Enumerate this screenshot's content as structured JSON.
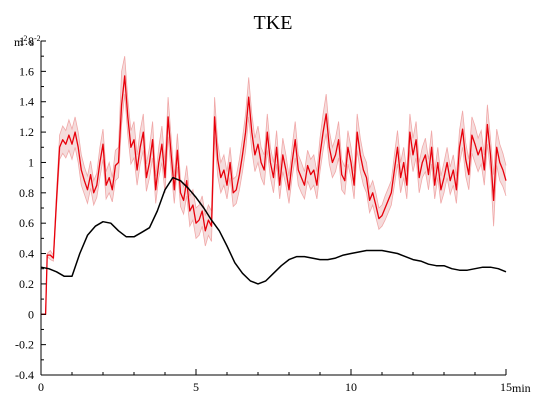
{
  "chart_data": {
    "type": "line",
    "title": "TKE",
    "ylabel": "m² s⁻²",
    "xlabel": "min",
    "xlim": [
      0,
      15
    ],
    "ylim": [
      -0.4,
      1.8
    ],
    "x_ticks": [
      0,
      5,
      10,
      15
    ],
    "x_tick_labels": [
      "0",
      "5",
      "10",
      "15"
    ],
    "y_ticks": [
      -0.4,
      -0.2,
      0,
      0.2,
      0.4,
      0.6,
      0.8,
      1,
      1.2,
      1.4,
      1.6,
      1.8
    ],
    "y_tick_labels": [
      "-0.4",
      "-0.2",
      "0",
      "0.2",
      "0.4",
      "0.6",
      "0.8",
      "1",
      "1.2",
      "1.4",
      "1.6",
      "1.8"
    ],
    "grid": false,
    "legend": "none",
    "colors": {
      "red_line": "#e8000b",
      "band_fill": "#f5dcdc",
      "band_edge": "#f0a8a8",
      "black_line": "#000000",
      "axis": "#000000"
    },
    "series": [
      {
        "color": "#e8000b",
        "has_band": true,
        "x": [
          0,
          0.15,
          0.2,
          0.3,
          0.4,
          0.5,
          0.6,
          0.7,
          0.8,
          0.9,
          1.0,
          1.1,
          1.2,
          1.3,
          1.4,
          1.5,
          1.6,
          1.7,
          1.8,
          1.9,
          2.0,
          2.1,
          2.2,
          2.3,
          2.4,
          2.5,
          2.6,
          2.7,
          2.8,
          2.9,
          3.0,
          3.1,
          3.2,
          3.3,
          3.4,
          3.5,
          3.6,
          3.7,
          3.8,
          3.9,
          4.0,
          4.1,
          4.2,
          4.3,
          4.4,
          4.5,
          4.6,
          4.7,
          4.8,
          4.9,
          5.0,
          5.1,
          5.2,
          5.3,
          5.4,
          5.5,
          5.6,
          5.7,
          5.8,
          5.9,
          6.0,
          6.1,
          6.2,
          6.3,
          6.4,
          6.5,
          6.6,
          6.7,
          6.8,
          6.9,
          7.0,
          7.1,
          7.2,
          7.3,
          7.4,
          7.5,
          7.6,
          7.7,
          7.8,
          7.9,
          8.0,
          8.1,
          8.2,
          8.3,
          8.4,
          8.5,
          8.6,
          8.7,
          8.8,
          8.9,
          9.0,
          9.1,
          9.2,
          9.3,
          9.4,
          9.5,
          9.6,
          9.7,
          9.8,
          9.9,
          10.0,
          10.1,
          10.2,
          10.3,
          10.4,
          10.5,
          10.6,
          10.7,
          10.8,
          10.9,
          11.0,
          11.1,
          11.2,
          11.3,
          11.4,
          11.5,
          11.6,
          11.7,
          11.8,
          11.9,
          12.0,
          12.1,
          12.2,
          12.3,
          12.4,
          12.5,
          12.6,
          12.7,
          12.8,
          12.9,
          13.0,
          13.1,
          13.2,
          13.3,
          13.4,
          13.5,
          13.6,
          13.7,
          13.8,
          13.9,
          14.0,
          14.1,
          14.2,
          14.3,
          14.4,
          14.5,
          14.6,
          14.7,
          14.8,
          14.9,
          15.0
        ],
        "values": [
          0.0,
          0.0,
          0.39,
          0.39,
          0.37,
          0.75,
          1.1,
          1.15,
          1.12,
          1.18,
          1.12,
          1.2,
          1.1,
          0.95,
          0.88,
          0.82,
          0.92,
          0.8,
          0.85,
          1.0,
          1.12,
          0.85,
          0.9,
          0.82,
          0.98,
          1.0,
          1.38,
          1.57,
          1.3,
          1.1,
          1.15,
          0.95,
          1.1,
          1.2,
          0.9,
          1.0,
          1.15,
          0.82,
          1.0,
          1.12,
          0.9,
          1.3,
          1.05,
          0.82,
          1.08,
          0.8,
          0.75,
          0.88,
          0.68,
          0.72,
          0.6,
          0.62,
          0.68,
          0.55,
          0.62,
          0.58,
          1.3,
          1.02,
          0.9,
          0.95,
          0.85,
          1.0,
          0.8,
          0.82,
          0.92,
          1.05,
          1.2,
          1.43,
          1.2,
          1.05,
          1.12,
          1.0,
          0.95,
          1.2,
          1.0,
          0.9,
          1.1,
          0.85,
          1.05,
          0.95,
          0.82,
          1.0,
          1.15,
          0.95,
          0.9,
          0.85,
          0.98,
          0.92,
          0.95,
          0.85,
          1.05,
          1.2,
          1.32,
          1.1,
          1.0,
          1.05,
          1.15,
          0.92,
          0.88,
          1.1,
          1.0,
          0.85,
          1.2,
          1.05,
          0.95,
          0.9,
          0.75,
          0.8,
          0.72,
          0.63,
          0.65,
          0.7,
          0.75,
          0.8,
          0.95,
          1.1,
          0.9,
          1.0,
          0.85,
          1.2,
          1.05,
          1.15,
          0.9,
          1.0,
          1.05,
          0.92,
          1.1,
          0.85,
          1.0,
          0.82,
          0.9,
          1.0,
          0.88,
          0.95,
          0.82,
          1.1,
          1.22,
          1.02,
          0.92,
          1.18,
          1.12,
          1.05,
          1.1,
          0.95,
          1.25,
          1.05,
          0.75,
          1.1,
          1.0,
          0.95,
          0.88
        ],
        "lower": [
          0.0,
          0.0,
          0.38,
          0.36,
          0.35,
          0.7,
          1.02,
          1.06,
          1.03,
          1.08,
          1.02,
          1.1,
          1.0,
          0.85,
          0.79,
          0.73,
          0.83,
          0.72,
          0.77,
          0.9,
          1.02,
          0.76,
          0.8,
          0.74,
          0.88,
          0.9,
          1.25,
          1.45,
          1.18,
          0.99,
          1.03,
          0.85,
          0.99,
          1.08,
          0.81,
          0.9,
          1.03,
          0.73,
          0.9,
          1.0,
          0.8,
          1.17,
          0.94,
          0.73,
          0.97,
          0.71,
          0.66,
          0.78,
          0.58,
          0.62,
          0.5,
          0.52,
          0.58,
          0.45,
          0.52,
          0.48,
          1.17,
          0.91,
          0.8,
          0.85,
          0.76,
          0.9,
          0.71,
          0.73,
          0.82,
          0.94,
          1.08,
          1.3,
          1.08,
          0.94,
          1.0,
          0.9,
          0.85,
          1.08,
          0.9,
          0.8,
          0.99,
          0.76,
          0.94,
          0.85,
          0.73,
          0.9,
          1.03,
          0.85,
          0.8,
          0.76,
          0.88,
          0.82,
          0.85,
          0.76,
          0.94,
          1.08,
          1.19,
          0.99,
          0.9,
          0.94,
          1.03,
          0.82,
          0.79,
          0.99,
          0.9,
          0.76,
          1.08,
          0.94,
          0.85,
          0.8,
          0.67,
          0.72,
          0.64,
          0.56,
          0.58,
          0.62,
          0.67,
          0.72,
          0.85,
          0.99,
          0.8,
          0.9,
          0.76,
          1.08,
          0.94,
          1.03,
          0.8,
          0.9,
          0.94,
          0.82,
          0.99,
          0.76,
          0.9,
          0.73,
          0.8,
          0.9,
          0.79,
          0.85,
          0.73,
          0.99,
          1.1,
          0.91,
          0.82,
          1.06,
          1.0,
          0.94,
          0.99,
          0.85,
          1.12,
          0.94,
          0.58,
          0.98,
          0.88,
          0.84,
          0.78
        ],
        "upper": [
          0.0,
          0.0,
          0.4,
          0.42,
          0.39,
          0.8,
          1.18,
          1.24,
          1.21,
          1.28,
          1.22,
          1.3,
          1.2,
          1.05,
          0.97,
          0.91,
          1.01,
          0.88,
          0.93,
          1.1,
          1.22,
          0.94,
          1.0,
          0.9,
          1.08,
          1.1,
          1.6,
          1.7,
          1.42,
          1.21,
          1.27,
          1.05,
          1.21,
          1.32,
          0.99,
          1.1,
          1.27,
          0.91,
          1.1,
          1.24,
          1.0,
          1.43,
          1.16,
          0.91,
          1.19,
          0.89,
          0.84,
          0.98,
          0.78,
          0.82,
          0.7,
          0.72,
          0.78,
          0.65,
          0.72,
          0.68,
          1.43,
          1.13,
          1.0,
          1.05,
          0.94,
          1.1,
          0.89,
          0.91,
          1.02,
          1.16,
          1.32,
          1.56,
          1.32,
          1.16,
          1.24,
          1.1,
          1.05,
          1.32,
          1.1,
          1.0,
          1.21,
          0.94,
          1.16,
          1.05,
          0.91,
          1.1,
          1.27,
          1.05,
          1.0,
          0.94,
          1.08,
          1.02,
          1.05,
          0.94,
          1.16,
          1.32,
          1.45,
          1.21,
          1.1,
          1.16,
          1.27,
          1.02,
          0.97,
          1.21,
          1.1,
          0.94,
          1.32,
          1.16,
          1.05,
          1.0,
          0.83,
          0.88,
          0.8,
          0.7,
          0.72,
          0.78,
          0.83,
          0.88,
          1.05,
          1.21,
          1.0,
          1.1,
          0.94,
          1.32,
          1.16,
          1.27,
          1.0,
          1.1,
          1.16,
          1.02,
          1.21,
          0.94,
          1.1,
          0.91,
          1.0,
          1.1,
          0.97,
          1.05,
          0.91,
          1.21,
          1.34,
          1.13,
          1.02,
          1.3,
          1.24,
          1.16,
          1.21,
          1.05,
          1.38,
          1.16,
          0.92,
          1.22,
          1.12,
          1.06,
          0.98
        ]
      },
      {
        "color": "#000000",
        "has_band": false,
        "x": [
          0,
          0.25,
          0.5,
          0.75,
          1.0,
          1.25,
          1.5,
          1.75,
          2.0,
          2.25,
          2.5,
          2.75,
          3.0,
          3.25,
          3.5,
          3.75,
          4.0,
          4.25,
          4.5,
          4.75,
          5.0,
          5.25,
          5.5,
          5.75,
          6.0,
          6.25,
          6.5,
          6.75,
          7.0,
          7.25,
          7.5,
          7.75,
          8.0,
          8.25,
          8.5,
          8.75,
          9.0,
          9.25,
          9.5,
          9.75,
          10.0,
          10.25,
          10.5,
          10.75,
          11.0,
          11.25,
          11.5,
          11.75,
          12.0,
          12.25,
          12.5,
          12.75,
          13.0,
          13.25,
          13.5,
          13.75,
          14.0,
          14.25,
          14.5,
          14.75,
          15.0
        ],
        "values": [
          0.31,
          0.3,
          0.28,
          0.25,
          0.25,
          0.4,
          0.52,
          0.58,
          0.61,
          0.6,
          0.55,
          0.51,
          0.51,
          0.54,
          0.57,
          0.68,
          0.82,
          0.9,
          0.88,
          0.83,
          0.77,
          0.7,
          0.62,
          0.55,
          0.45,
          0.34,
          0.27,
          0.22,
          0.2,
          0.22,
          0.27,
          0.32,
          0.36,
          0.38,
          0.38,
          0.37,
          0.36,
          0.36,
          0.37,
          0.39,
          0.4,
          0.41,
          0.42,
          0.42,
          0.42,
          0.41,
          0.4,
          0.38,
          0.36,
          0.35,
          0.33,
          0.32,
          0.32,
          0.3,
          0.29,
          0.29,
          0.3,
          0.31,
          0.31,
          0.3,
          0.28
        ]
      }
    ]
  }
}
